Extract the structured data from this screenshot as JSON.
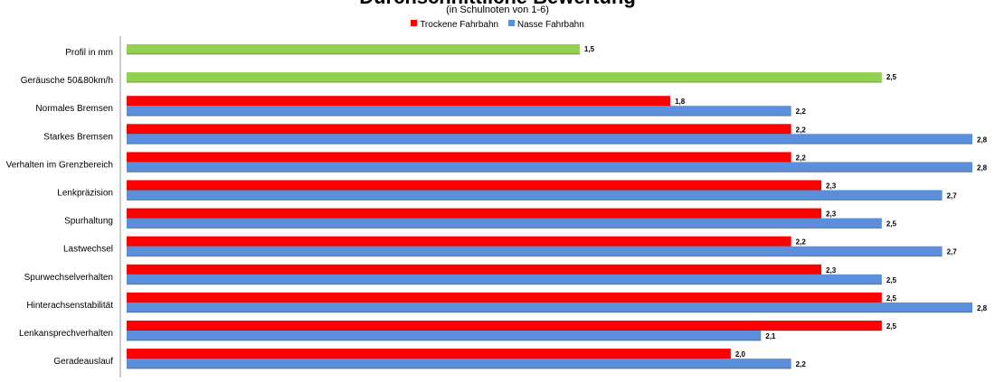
{
  "chart_data": {
    "type": "bar",
    "orientation": "horizontal",
    "title": "Durchschnittliche Bewertung",
    "subtitle": "(in Schulnoten von 1-6)",
    "categories": [
      "Profil in mm",
      "Geräusche 50&80km/h",
      "Normales Bremsen",
      "Starkes Bremsen",
      "Verhalten im Grenzbereich",
      "Lenkpräzision",
      "Spurhaltung",
      "Lastwechsel",
      "Spurwechselverhalten",
      "Hinterachsenstabilität",
      "Lenkansprechverhalten",
      "Geradeauslauf"
    ],
    "series": [
      {
        "name": "Trockene Fahrbahn",
        "color": "#ff0000",
        "values": [
          null,
          null,
          1.8,
          2.2,
          2.2,
          2.3,
          2.3,
          2.2,
          2.3,
          2.5,
          2.5,
          2.0
        ],
        "labels": [
          "",
          "",
          "1,8",
          "2,2",
          "2,2",
          "2,3",
          "2,3",
          "2,2",
          "2,3",
          "2,5",
          "2,5",
          "2,0"
        ]
      },
      {
        "name": "Nasse Fahrbahn",
        "color": "#5b8fdc",
        "values": [
          null,
          null,
          2.2,
          2.8,
          2.8,
          2.7,
          2.5,
          2.7,
          2.5,
          2.8,
          2.1,
          2.2
        ],
        "labels": [
          "",
          "",
          "2,2",
          "2,8",
          "2,8",
          "2,7",
          "2,5",
          "2,7",
          "2,5",
          "2,8",
          "2,1",
          "2,2"
        ]
      }
    ],
    "single_values": [
      {
        "category": "Profil in mm",
        "value": 1.5,
        "label": "1,5",
        "color": "#92d050"
      },
      {
        "category": "Geräusche 50&80km/h",
        "value": 2.5,
        "label": "2,5",
        "color": "#92d050"
      }
    ],
    "xlim": [
      0,
      2.8
    ],
    "grid": false,
    "legend_position": "top"
  }
}
